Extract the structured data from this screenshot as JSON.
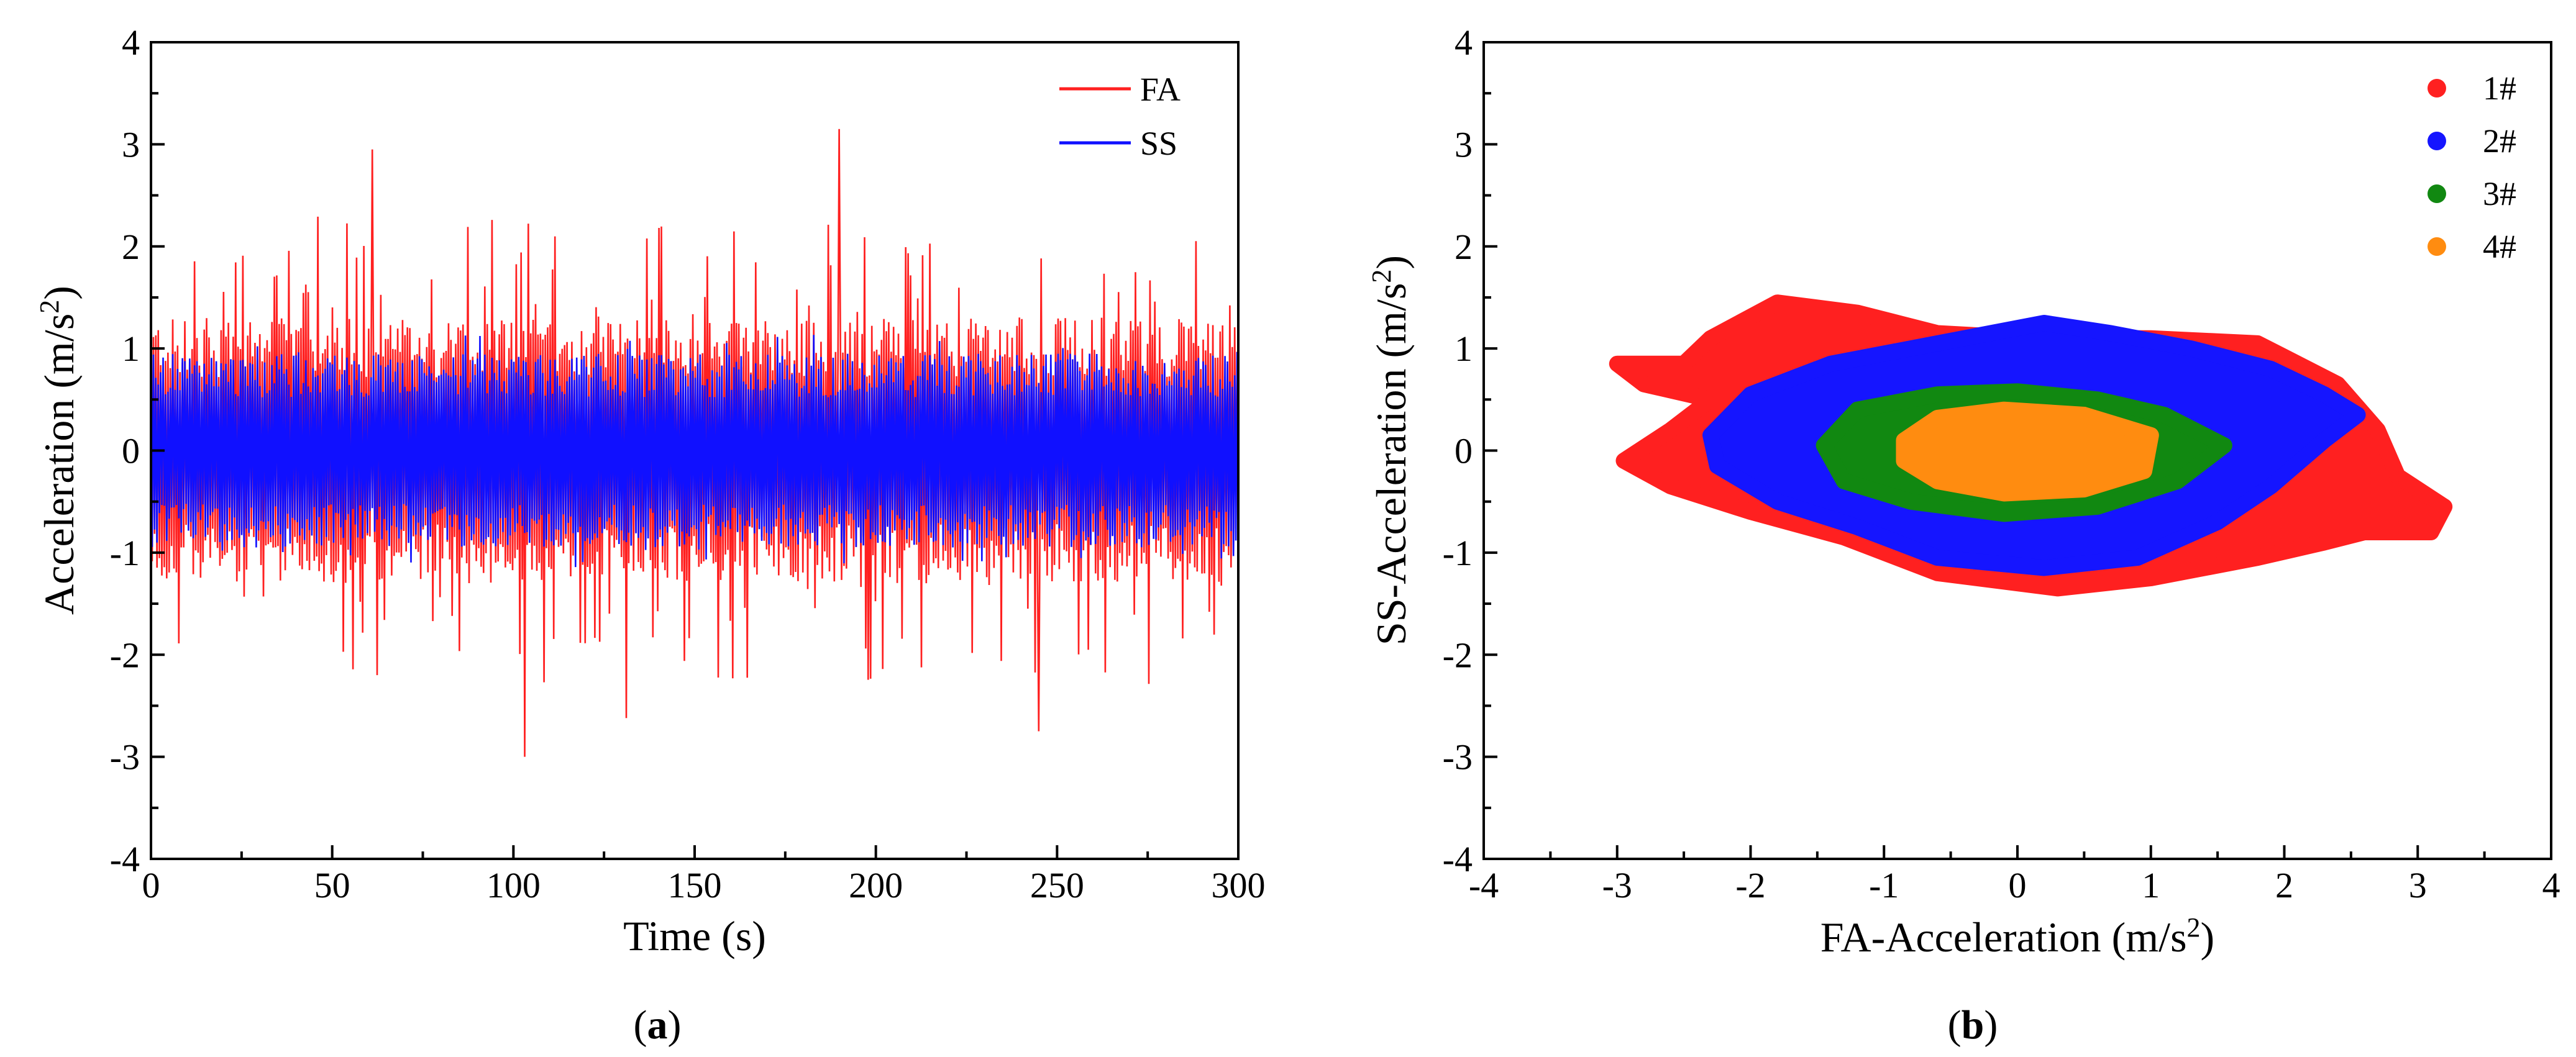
{
  "chart_data": [
    {
      "type": "line",
      "panel_label": "(a)",
      "panel_letter": "a",
      "title": "",
      "xlabel": "Time (s)",
      "ylabel": "Acceleration (m/s2)",
      "xlim": [
        0,
        300
      ],
      "ylim": [
        -4,
        4
      ],
      "xticks": [
        0,
        50,
        100,
        150,
        200,
        250,
        300
      ],
      "yticks": [
        -4,
        -3,
        -2,
        -1,
        0,
        1,
        2,
        3,
        4
      ],
      "legend_position": "top-right",
      "series": [
        {
          "name": "FA",
          "color": "#ff2020",
          "typical_envelope": [
            -1.3,
            1.3
          ],
          "peaks": [
            [
              61,
              2.95
            ],
            [
              103,
              -3.0
            ],
            [
              131,
              -2.62
            ],
            [
              190,
              3.15
            ],
            [
              245,
              -2.75
            ]
          ]
        },
        {
          "name": "SS",
          "color": "#1010ff",
          "typical_envelope": [
            -0.95,
            0.95
          ]
        }
      ]
    },
    {
      "type": "scatter",
      "panel_label": "(b)",
      "panel_letter": "b",
      "title": "",
      "xlabel": "FA-Acceleration (m/s2)",
      "ylabel": "SS-Acceleration (m/s2)",
      "xlim": [
        -4,
        4
      ],
      "ylim": [
        -4,
        4
      ],
      "xticks": [
        -4,
        -3,
        -2,
        -1,
        0,
        1,
        2,
        3,
        4
      ],
      "yticks": [
        -4,
        -3,
        -2,
        -1,
        0,
        1,
        2,
        3,
        4
      ],
      "legend_position": "top-right",
      "series": [
        {
          "name": "1#",
          "color": "#ff2020",
          "x_extent": [
            -3.05,
            3.2
          ],
          "y_extent": [
            -1.35,
            1.45
          ],
          "region": [
            [
              -3.0,
              0.85
            ],
            [
              -2.5,
              0.85
            ],
            [
              -2.3,
              1.1
            ],
            [
              -1.8,
              1.45
            ],
            [
              -1.2,
              1.35
            ],
            [
              -0.6,
              1.15
            ],
            [
              0.1,
              1.1
            ],
            [
              1.0,
              1.1
            ],
            [
              1.8,
              1.05
            ],
            [
              2.4,
              0.65
            ],
            [
              2.7,
              0.2
            ],
            [
              2.85,
              -0.25
            ],
            [
              3.2,
              -0.55
            ],
            [
              3.1,
              -0.8
            ],
            [
              2.6,
              -0.8
            ],
            [
              2.3,
              -0.9
            ],
            [
              1.8,
              -1.05
            ],
            [
              1.0,
              -1.25
            ],
            [
              0.3,
              -1.35
            ],
            [
              -0.6,
              -1.2
            ],
            [
              -1.3,
              -0.85
            ],
            [
              -2.0,
              -0.6
            ],
            [
              -2.6,
              -0.35
            ],
            [
              -2.95,
              -0.1
            ],
            [
              -2.6,
              0.2
            ],
            [
              -2.3,
              0.5
            ],
            [
              -2.8,
              0.65
            ]
          ]
        },
        {
          "name": "2#",
          "color": "#1515ff",
          "x_extent": [
            -2.35,
            2.6
          ],
          "y_extent": [
            -1.2,
            1.3
          ],
          "region": [
            [
              -2.3,
              0.15
            ],
            [
              -2.0,
              0.55
            ],
            [
              -1.4,
              0.85
            ],
            [
              -0.6,
              1.05
            ],
            [
              0.2,
              1.25
            ],
            [
              0.7,
              1.15
            ],
            [
              1.3,
              1.0
            ],
            [
              1.9,
              0.8
            ],
            [
              2.3,
              0.55
            ],
            [
              2.55,
              0.35
            ],
            [
              2.3,
              0.1
            ],
            [
              1.9,
              -0.35
            ],
            [
              1.5,
              -0.7
            ],
            [
              0.9,
              -1.05
            ],
            [
              0.2,
              -1.15
            ],
            [
              -0.6,
              -1.05
            ],
            [
              -1.2,
              -0.75
            ],
            [
              -1.8,
              -0.5
            ],
            [
              -2.25,
              -0.15
            ]
          ]
        },
        {
          "name": "3#",
          "color": "#118811",
          "x_extent": [
            -1.5,
            1.6
          ],
          "y_extent": [
            -0.65,
            0.6
          ],
          "region": [
            [
              -1.45,
              0.05
            ],
            [
              -1.2,
              0.4
            ],
            [
              -0.6,
              0.55
            ],
            [
              0.0,
              0.58
            ],
            [
              0.6,
              0.5
            ],
            [
              1.1,
              0.35
            ],
            [
              1.55,
              0.05
            ],
            [
              1.2,
              -0.3
            ],
            [
              0.6,
              -0.55
            ],
            [
              -0.1,
              -0.62
            ],
            [
              -0.8,
              -0.5
            ],
            [
              -1.3,
              -0.3
            ]
          ]
        },
        {
          "name": "4#",
          "color": "#ff8c10",
          "x_extent": [
            -0.85,
            1.05
          ],
          "y_extent": [
            -0.42,
            0.4
          ],
          "region": [
            [
              -0.85,
              0.1
            ],
            [
              -0.6,
              0.32
            ],
            [
              -0.1,
              0.4
            ],
            [
              0.5,
              0.35
            ],
            [
              1.0,
              0.15
            ],
            [
              0.95,
              -0.2
            ],
            [
              0.5,
              -0.38
            ],
            [
              -0.1,
              -0.42
            ],
            [
              -0.6,
              -0.3
            ],
            [
              -0.85,
              -0.1
            ]
          ]
        }
      ]
    }
  ]
}
